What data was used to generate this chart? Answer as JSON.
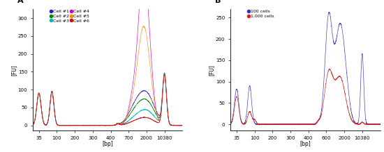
{
  "panel_A": {
    "title": "A",
    "ylabel": "[FU]",
    "xlabel": "[bp]",
    "ylim": [
      -15,
      325
    ],
    "xtick_positions": [
      0,
      1,
      2,
      3,
      4,
      5,
      6,
      7,
      8
    ],
    "xtick_labels": [
      "35",
      "100",
      "200",
      "300",
      "400",
      "700",
      "2000",
      "10380",
      ""
    ],
    "yticks": [
      0,
      50,
      100,
      150,
      200,
      250,
      300
    ],
    "legend": [
      {
        "label": "Cell #1",
        "color": "#2020cc"
      },
      {
        "label": "Cell #2",
        "color": "#008800"
      },
      {
        "label": "Cell #3",
        "color": "#00bbbb"
      },
      {
        "label": "Cell #4",
        "color": "#cc00cc"
      },
      {
        "label": "Cell #5",
        "color": "#ff8800"
      },
      {
        "label": "Cell #6",
        "color": "#cc1111"
      }
    ]
  },
  "panel_B": {
    "title": "B",
    "ylabel": "[FU]",
    "xlabel": "[bp]",
    "ylim": [
      -15,
      270
    ],
    "xtick_positions": [
      0,
      1,
      2,
      3,
      4,
      5,
      6,
      7,
      8
    ],
    "xtick_labels": [
      "35",
      "100",
      "200",
      "300",
      "400",
      "600",
      "2000",
      "10380",
      ""
    ],
    "yticks": [
      0,
      50,
      100,
      150,
      200,
      250
    ],
    "legend": [
      {
        "label": "100 cells",
        "color": "#3333bb"
      },
      {
        "label": "1,000 cells",
        "color": "#cc2222"
      }
    ]
  }
}
